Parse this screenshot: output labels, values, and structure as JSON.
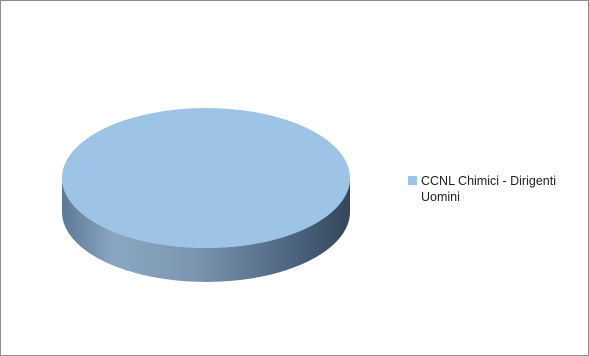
{
  "chart_data": {
    "type": "pie",
    "title": "",
    "categories": [
      "CCNL Chimici - Dirigenti Uomini"
    ],
    "values": [
      100
    ],
    "colors": {
      "slice_top": "#9dc3e6",
      "slice_side_dark": "#3e5168",
      "slice_side_mid": "#8aa6c2",
      "frame_border": "#8c8c8c"
    },
    "legend": {
      "position": "right",
      "entries": [
        {
          "label": "CCNL Chimici - Dirigenti Uomini",
          "color": "#9dc3e6"
        }
      ]
    },
    "style": "3d-pie"
  }
}
